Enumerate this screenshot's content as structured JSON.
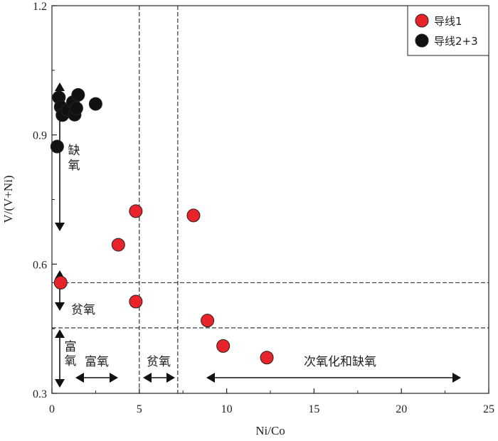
{
  "chart_data": {
    "type": "scatter",
    "xlabel": "Ni/Co",
    "ylabel": "V/(V+Ni)",
    "xlim": [
      0,
      25
    ],
    "ylim": [
      0.3,
      1.2
    ],
    "xticks": [
      "0",
      "5",
      "10",
      "15",
      "20",
      "25"
    ],
    "yticks": [
      "0.3",
      "0.6",
      "0.9",
      "1.2"
    ],
    "grid": false,
    "legend_position": "top-right",
    "series": [
      {
        "name": "导线1",
        "color": "#e8232a",
        "points": [
          {
            "x": 0.5,
            "y": 0.557
          },
          {
            "x": 3.8,
            "y": 0.645
          },
          {
            "x": 4.8,
            "y": 0.723
          },
          {
            "x": 4.8,
            "y": 0.513
          },
          {
            "x": 8.1,
            "y": 0.713
          },
          {
            "x": 8.9,
            "y": 0.469
          },
          {
            "x": 9.8,
            "y": 0.41
          },
          {
            "x": 12.3,
            "y": 0.383
          }
        ]
      },
      {
        "name": "导线2+3",
        "color": "#111111",
        "points": [
          {
            "x": 0.3,
            "y": 0.873
          },
          {
            "x": 0.4,
            "y": 0.987
          },
          {
            "x": 0.5,
            "y": 0.965
          },
          {
            "x": 0.6,
            "y": 0.946
          },
          {
            "x": 0.9,
            "y": 0.958
          },
          {
            "x": 1.2,
            "y": 0.976
          },
          {
            "x": 1.3,
            "y": 0.947
          },
          {
            "x": 1.4,
            "y": 0.962
          },
          {
            "x": 1.5,
            "y": 0.993
          },
          {
            "x": 2.5,
            "y": 0.972
          }
        ]
      }
    ],
    "reference_lines": {
      "vertical_x": [
        5,
        7.2
      ],
      "horizontal_y": [
        0.557,
        0.452
      ]
    },
    "zone_labels": {
      "anoxic": "缺氧",
      "poor_oxygen_y": "贫氧",
      "rich_oxygen_y": "富氧",
      "rich_oxygen_x": "富氧",
      "poor_oxygen_x": "贫氧",
      "suboxic_anoxic_x": "次氧化和缺氧"
    }
  }
}
